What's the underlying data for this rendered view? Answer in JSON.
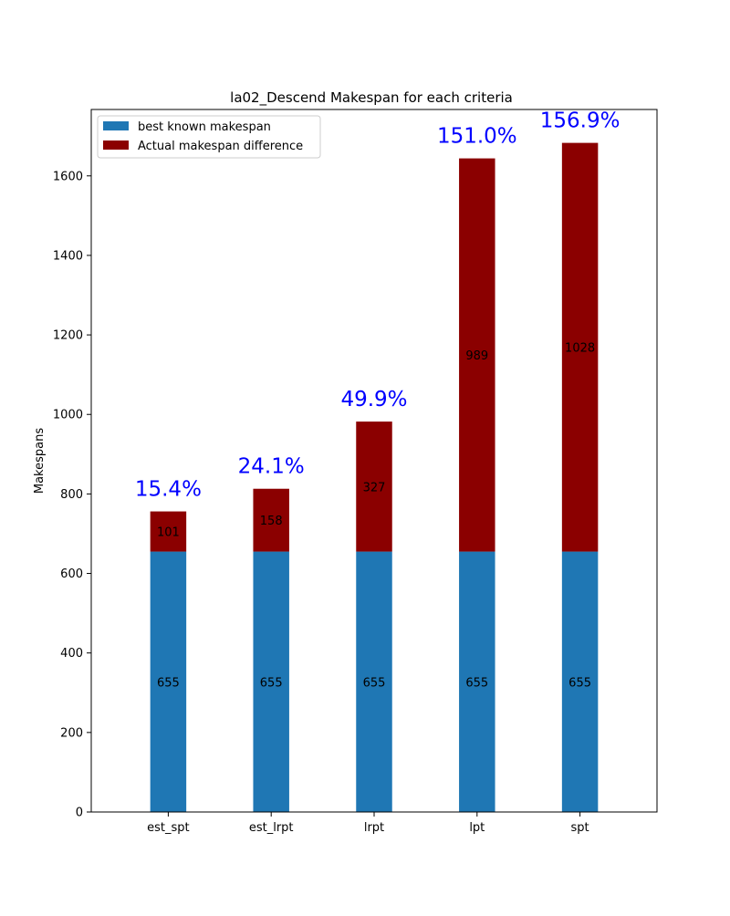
{
  "chart_data": {
    "type": "bar",
    "stacked": true,
    "title": "la02_Descend Makespan for each criteria",
    "xlabel": "",
    "ylabel": "Makespans",
    "categories": [
      "est_spt",
      "est_lrpt",
      "lrpt",
      "lpt",
      "spt"
    ],
    "series": [
      {
        "name": "best known makespan",
        "values": [
          655,
          655,
          655,
          655,
          655
        ],
        "color": "#1f77b4"
      },
      {
        "name": "Actual makespan difference",
        "values": [
          101,
          158,
          327,
          989,
          1028
        ],
        "color": "#8b0000"
      }
    ],
    "bar_labels": {
      "best": [
        "655",
        "655",
        "655",
        "655",
        "655"
      ],
      "diff": [
        "101",
        "158",
        "327",
        "989",
        "1028"
      ]
    },
    "percent_labels": [
      "15.4%",
      "24.1%",
      "49.9%",
      "151.0%",
      "156.9%"
    ],
    "percent_color": "#0000ff",
    "ylim": [
      0,
      1767
    ],
    "yticks": [
      0,
      200,
      400,
      600,
      800,
      1000,
      1200,
      1400,
      1600
    ],
    "legend_location": "upper left",
    "grid": false
  }
}
